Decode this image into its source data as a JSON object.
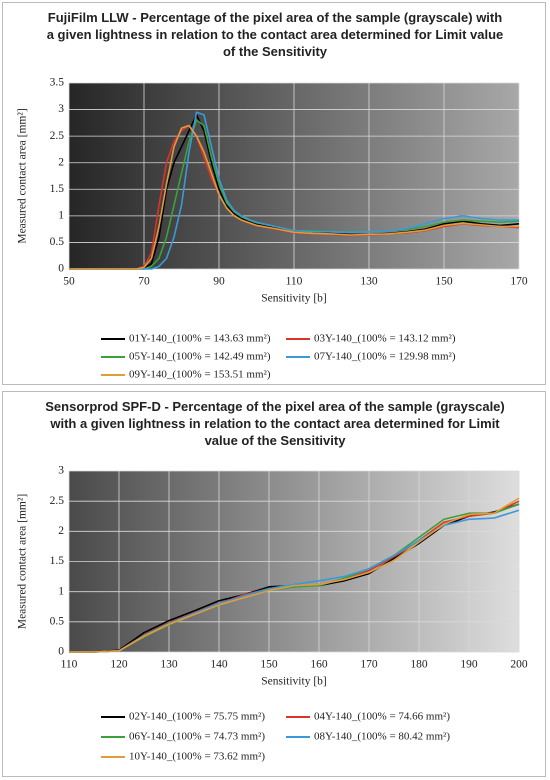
{
  "chart_data": [
    {
      "type": "line",
      "title": "FujiFilm LLW - Percentage of the pixel area of the sample (grayscale) with a given lightness in relation to the contact area determined for Limit value of the Sensitivity",
      "x_label": "Sensitivity [b]",
      "y_label": "Measured contact area [mm²]",
      "x": [
        50,
        60,
        66,
        68,
        70,
        72,
        74,
        76,
        78,
        80,
        82,
        84,
        86,
        88,
        90,
        92,
        94,
        96,
        98,
        100,
        105,
        110,
        115,
        120,
        125,
        130,
        135,
        140,
        145,
        150,
        155,
        160,
        165,
        170
      ],
      "xlim": [
        50,
        170
      ],
      "xticks": [
        50,
        70,
        90,
        110,
        130,
        150,
        170
      ],
      "ylim": [
        0,
        3.5
      ],
      "yticks": [
        0,
        0.5,
        1,
        1.5,
        2,
        2.5,
        3,
        3.5
      ],
      "grid": true,
      "series": [
        {
          "name": "01Y-140_(100% = 143.63 mm²)",
          "color": "#000000",
          "values": [
            0,
            0,
            0,
            0,
            0.02,
            0.1,
            0.6,
            1.5,
            2.0,
            2.3,
            2.6,
            2.9,
            2.6,
            2.0,
            1.5,
            1.2,
            1.05,
            0.95,
            0.9,
            0.85,
            0.78,
            0.7,
            0.68,
            0.67,
            0.65,
            0.65,
            0.67,
            0.7,
            0.75,
            0.85,
            0.9,
            0.85,
            0.82,
            0.85
          ]
        },
        {
          "name": "03Y-140_(100% = 143.12 mm²)",
          "color": "#d9342b",
          "values": [
            0,
            0,
            0,
            0,
            0.05,
            0.3,
            1.2,
            2.0,
            2.4,
            2.6,
            2.7,
            2.5,
            2.1,
            1.7,
            1.4,
            1.15,
            1.0,
            0.92,
            0.86,
            0.82,
            0.75,
            0.68,
            0.66,
            0.65,
            0.63,
            0.64,
            0.66,
            0.68,
            0.72,
            0.8,
            0.85,
            0.82,
            0.8,
            0.78
          ]
        },
        {
          "name": "05Y-140_(100% = 142.49 mm²)",
          "color": "#3ca03c",
          "values": [
            0,
            0,
            0,
            0,
            0,
            0.05,
            0.2,
            0.6,
            1.2,
            1.8,
            2.4,
            2.8,
            2.7,
            2.1,
            1.6,
            1.25,
            1.08,
            0.98,
            0.92,
            0.87,
            0.8,
            0.72,
            0.72,
            0.7,
            0.7,
            0.7,
            0.72,
            0.74,
            0.8,
            0.88,
            0.92,
            0.9,
            0.88,
            0.9
          ]
        },
        {
          "name": "07Y-140_(100% = 129.98 mm²)",
          "color": "#3a9ad9",
          "values": [
            0,
            0,
            0,
            0,
            0,
            0,
            0.05,
            0.2,
            0.6,
            1.2,
            2.2,
            2.95,
            2.9,
            2.3,
            1.7,
            1.3,
            1.1,
            1.0,
            0.93,
            0.88,
            0.8,
            0.72,
            0.7,
            0.7,
            0.69,
            0.7,
            0.72,
            0.76,
            0.85,
            0.95,
            1.0,
            0.95,
            0.92,
            0.92
          ]
        },
        {
          "name": "09Y-140_(100% = 153.51 mm²)",
          "color": "#e29a3b",
          "values": [
            0,
            0,
            0,
            0,
            0.03,
            0.2,
            0.8,
            1.6,
            2.3,
            2.65,
            2.7,
            2.5,
            2.2,
            1.8,
            1.4,
            1.15,
            1.0,
            0.92,
            0.87,
            0.82,
            0.76,
            0.69,
            0.67,
            0.66,
            0.64,
            0.65,
            0.66,
            0.69,
            0.73,
            0.82,
            0.86,
            0.83,
            0.8,
            0.8
          ]
        }
      ]
    },
    {
      "type": "line",
      "title": "Sensorprod SPF-D - Percentage of the pixel area of the sample (grayscale) with a given lightness in relation to the contact area determined for Limit value of the Sensitivity",
      "x_label": "Sensitivity [b]",
      "y_label": "Measured contact area [mm²]",
      "x": [
        110,
        115,
        120,
        125,
        130,
        135,
        140,
        145,
        150,
        155,
        160,
        165,
        170,
        175,
        180,
        185,
        190,
        195,
        200
      ],
      "xlim": [
        110,
        200
      ],
      "xticks": [
        110,
        120,
        130,
        140,
        150,
        160,
        170,
        180,
        190,
        200
      ],
      "ylim": [
        0,
        3
      ],
      "yticks": [
        0,
        0.5,
        1,
        1.5,
        2,
        2.5,
        3
      ],
      "grid": true,
      "series": [
        {
          "name": "02Y-140_(100% = 75.75 mm²)",
          "color": "#000000",
          "values": [
            0,
            0,
            0.03,
            0.32,
            0.52,
            0.68,
            0.85,
            0.95,
            1.08,
            1.1,
            1.1,
            1.18,
            1.3,
            1.55,
            1.8,
            2.1,
            2.25,
            2.32,
            2.45
          ]
        },
        {
          "name": "04Y-140_(100% = 74.66 mm²)",
          "color": "#d9342b",
          "values": [
            0,
            0,
            0.02,
            0.28,
            0.48,
            0.65,
            0.8,
            0.95,
            1.05,
            1.08,
            1.12,
            1.2,
            1.35,
            1.58,
            1.85,
            2.15,
            2.25,
            2.3,
            2.5
          ]
        },
        {
          "name": "06Y-140_(100% = 74.73 mm²)",
          "color": "#3ca03c",
          "values": [
            0,
            0,
            0.02,
            0.25,
            0.45,
            0.62,
            0.78,
            0.92,
            1.02,
            1.08,
            1.1,
            1.22,
            1.38,
            1.6,
            1.9,
            2.2,
            2.3,
            2.3,
            2.45
          ]
        },
        {
          "name": "08Y-140_(100% = 80.42 mm²)",
          "color": "#3a9ad9",
          "values": [
            0,
            0,
            0.02,
            0.27,
            0.47,
            0.64,
            0.8,
            0.93,
            1.05,
            1.12,
            1.18,
            1.25,
            1.38,
            1.6,
            1.85,
            2.1,
            2.2,
            2.22,
            2.35
          ]
        },
        {
          "name": "10Y-140_(100% = 73.62 mm²)",
          "color": "#e29a3b",
          "values": [
            0,
            0,
            0.02,
            0.26,
            0.46,
            0.62,
            0.78,
            0.9,
            1.02,
            1.1,
            1.12,
            1.2,
            1.32,
            1.52,
            1.82,
            2.12,
            2.28,
            2.3,
            2.55
          ]
        }
      ]
    }
  ]
}
